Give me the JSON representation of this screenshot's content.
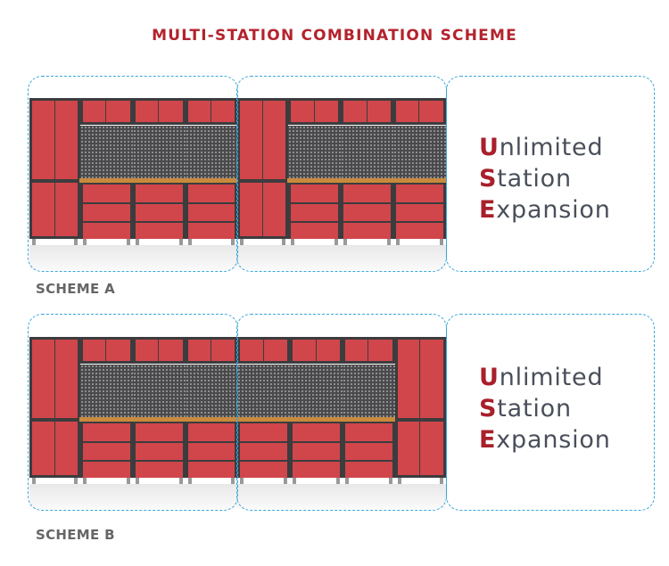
{
  "title": "MULTI-STATION COMBINATION SCHEME",
  "colors": {
    "accent": "#b3232d",
    "cabinet": "#d0464b",
    "frame": "#3c3c3e",
    "pegboard": "#4a4a4c",
    "worktop": "#c98a3d",
    "dashed": "#3aa6d9"
  },
  "schemes": [
    {
      "label": "SCHEME A",
      "layout": [
        "tall",
        "bench",
        "bench",
        "bench",
        "tall",
        "bench",
        "bench",
        "bench"
      ],
      "slogan": [
        {
          "first": "U",
          "rest": "nlimited"
        },
        {
          "first": "S",
          "rest": "tation"
        },
        {
          "first": "E",
          "rest": "xpansion"
        }
      ]
    },
    {
      "label": "SCHEME B",
      "layout": [
        "tall",
        "bench",
        "bench",
        "bench",
        "bench",
        "bench",
        "bench",
        "tall"
      ],
      "slogan": [
        {
          "first": "U",
          "rest": "nlimited"
        },
        {
          "first": "S",
          "rest": "tation"
        },
        {
          "first": "E",
          "rest": "xpansion"
        }
      ]
    }
  ]
}
